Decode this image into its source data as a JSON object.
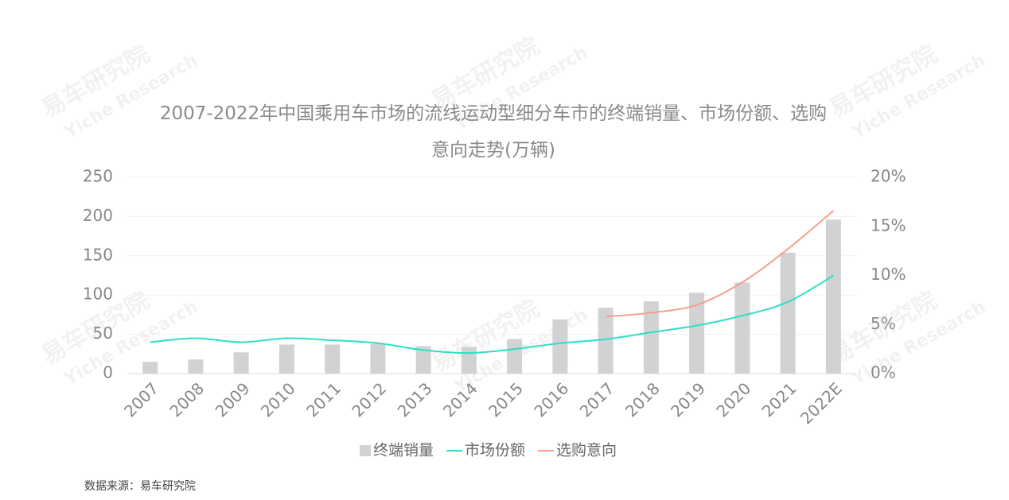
{
  "chart_data": {
    "type": "bar-line",
    "title": "2007-2022年中国乘用车市场的流线运动型细分车市的终端销量、市场份额、选购意向走势(万辆)",
    "source": "数据来源：易车研究院",
    "watermark": [
      "易车研究院",
      "Yiche Research"
    ],
    "categories": [
      "2007",
      "2008",
      "2009",
      "2010",
      "2011",
      "2012",
      "2013",
      "2014",
      "2015",
      "2016",
      "2017",
      "2018",
      "2019",
      "2020",
      "2021",
      "2022E"
    ],
    "series": [
      {
        "name": "终端销量",
        "type": "bar",
        "color": "#d0d2d4",
        "values": [
          15,
          18,
          27,
          37,
          37,
          38,
          35,
          34,
          44,
          69,
          84,
          92,
          103,
          116,
          154,
          196
        ]
      },
      {
        "name": "市场份额",
        "type": "line",
        "axis": "y2",
        "color": "#2de0c4",
        "values": [
          3.2,
          3.6,
          3.2,
          3.6,
          3.4,
          3.1,
          2.4,
          2.1,
          2.5,
          3.1,
          3.5,
          4.2,
          4.9,
          5.9,
          7.3,
          10.0
        ]
      },
      {
        "name": "选购意向",
        "type": "line",
        "axis": "y2",
        "color": "#f4a08c",
        "values": [
          null,
          null,
          null,
          null,
          null,
          null,
          null,
          null,
          null,
          null,
          5.8,
          6.2,
          7.0,
          9.3,
          12.7,
          16.6
        ]
      }
    ],
    "ylim": [
      0,
      250
    ],
    "yticks": [
      0,
      50,
      100,
      150,
      200,
      250
    ],
    "y2lim": [
      0,
      20
    ],
    "y2ticks": [
      {
        "value": 0,
        "label": "0%"
      },
      {
        "value": 5,
        "label": "5%"
      },
      {
        "value": 10,
        "label": "10%"
      },
      {
        "value": 15,
        "label": "15%"
      },
      {
        "value": 20,
        "label": "20%"
      }
    ],
    "grid": true,
    "legend": "bottom"
  }
}
